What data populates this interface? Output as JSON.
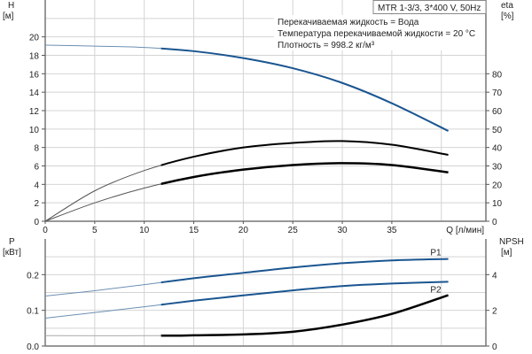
{
  "chart_data": [
    {
      "type": "line",
      "title": "MTR 1-3/3, 3*400 V, 50Hz",
      "info": [
        "Перекачиваемая жидкость = Вода",
        "Температура перекачиваемой жидкости = 20 °C",
        "Плотность = 998.2 кг/м³"
      ],
      "xlabel": "Q [л/мин]",
      "xlim": [
        0,
        44.5
      ],
      "xticks": [
        0,
        5,
        10,
        15,
        20,
        25,
        30,
        35,
        40
      ],
      "ylabel": "H",
      "yunit": "[м]",
      "ylim": [
        0,
        24
      ],
      "yticks": [
        0,
        2,
        4,
        6,
        8,
        10,
        12,
        14,
        16,
        18,
        20
      ],
      "y2label": "eta",
      "y2unit": "[%]",
      "y2lim": [
        0,
        120
      ],
      "y2ticks": [
        0,
        10,
        20,
        30,
        40,
        50,
        60,
        70,
        80
      ],
      "grid": true,
      "series": [
        {
          "axis": "left",
          "color": "#1a5590",
          "x": [
            0,
            5,
            10,
            15,
            20,
            25,
            30,
            35,
            40.7
          ],
          "y": [
            19.1,
            19.0,
            18.85,
            18.45,
            17.7,
            16.6,
            15.0,
            12.8,
            9.8
          ]
        },
        {
          "axis": "right",
          "color": "#000000",
          "x": [
            0,
            5,
            10,
            15,
            20,
            25,
            30,
            35,
            40.7
          ],
          "y": [
            0,
            16.5,
            27.5,
            35,
            40,
            42.5,
            43.5,
            41.5,
            36
          ]
        },
        {
          "axis": "right",
          "color": "#000000",
          "x": [
            0,
            5,
            10,
            15,
            20,
            25,
            30,
            35,
            40.7
          ],
          "y": [
            0,
            10,
            18,
            24,
            28,
            30.5,
            31.5,
            30.5,
            26.5
          ]
        }
      ],
      "operating_range_start": 11.7
    },
    {
      "type": "line",
      "ylabel": "P",
      "yunit": "[кВт]",
      "ylim": [
        0,
        0.3
      ],
      "yticks": [
        0.0,
        0.1,
        0.2
      ],
      "y2label": "NPSH",
      "y2unit": "[м]",
      "y2lim": [
        0,
        6
      ],
      "y2ticks": [
        0,
        2,
        4
      ],
      "xlim": [
        0,
        44.5
      ],
      "grid": true,
      "series": [
        {
          "name": "P1",
          "axis": "left",
          "color": "#1a5590",
          "x": [
            0,
            5,
            10,
            15,
            20,
            25,
            30,
            35,
            40.7
          ],
          "y": [
            0.14,
            0.155,
            0.172,
            0.19,
            0.205,
            0.22,
            0.232,
            0.24,
            0.244
          ]
        },
        {
          "name": "P2",
          "axis": "left",
          "color": "#1a5590",
          "x": [
            0,
            5,
            10,
            15,
            20,
            25,
            30,
            35,
            40.7
          ],
          "y": [
            0.078,
            0.094,
            0.11,
            0.127,
            0.142,
            0.156,
            0.168,
            0.175,
            0.18
          ]
        },
        {
          "axis": "right",
          "color": "#000000",
          "x": [
            0,
            11.7,
            15,
            20,
            25,
            30,
            35,
            40.7
          ],
          "y": [
            0.58,
            0.58,
            0.6,
            0.65,
            0.8,
            1.2,
            1.8,
            2.85
          ]
        }
      ],
      "operating_range_start": 11.7
    }
  ]
}
